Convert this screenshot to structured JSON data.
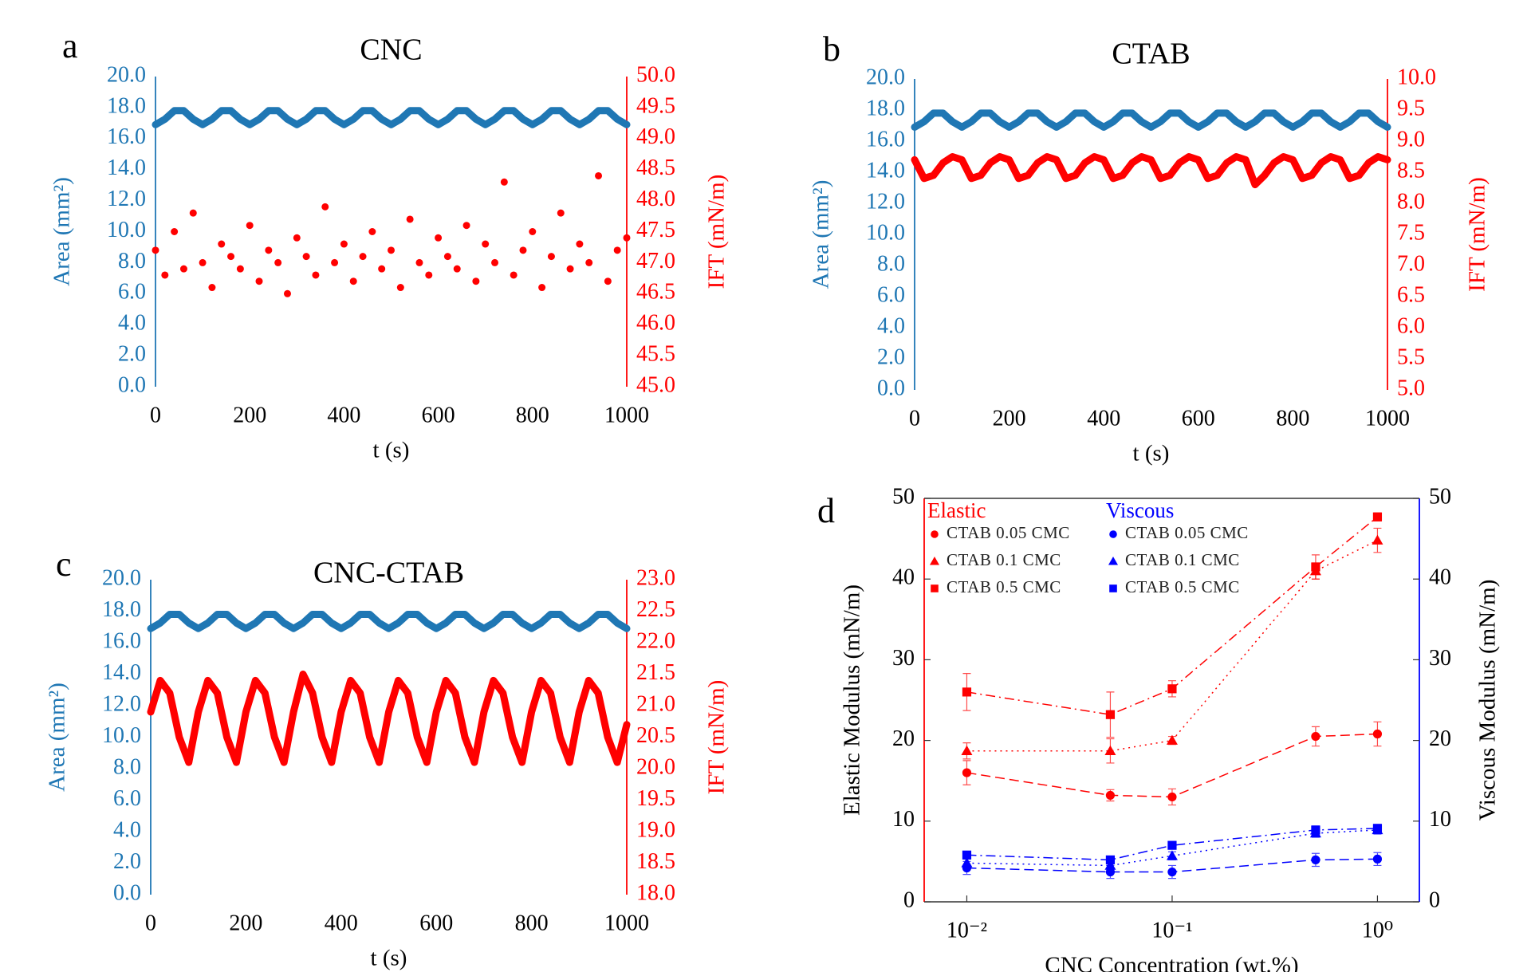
{
  "chart_data": [
    {
      "type": "scatter",
      "panel": "a",
      "title": "CNC",
      "xlabel": "t (s)",
      "ylabel": "Area (mm²)",
      "y2label": "IFT (mN/m)",
      "colored_axes": true,
      "x": [
        0,
        20,
        40,
        60,
        80,
        100,
        120,
        140,
        160,
        180,
        200,
        220,
        240,
        260,
        280,
        300,
        320,
        340,
        360,
        380,
        400,
        420,
        440,
        460,
        480,
        500,
        520,
        540,
        560,
        580,
        600,
        620,
        640,
        660,
        680,
        700,
        720,
        740,
        760,
        780,
        800,
        820,
        840,
        860,
        880,
        900,
        920,
        940,
        960,
        980,
        1000
      ],
      "xlim": [
        0,
        1000
      ],
      "xticks": [
        0,
        200,
        400,
        600,
        800,
        1000
      ],
      "ylim": [
        0,
        20
      ],
      "yticks": [
        {
          "value": 0,
          "label": "0.0"
        },
        {
          "value": 2,
          "label": "2.0"
        },
        {
          "value": 4,
          "label": "4.0"
        },
        {
          "value": 6,
          "label": "6.0"
        },
        {
          "value": 8,
          "label": "8.0"
        },
        {
          "value": 10,
          "label": "10.0"
        },
        {
          "value": 12,
          "label": "12.0"
        },
        {
          "value": 14,
          "label": "14.0"
        },
        {
          "value": 16,
          "label": "16.0"
        },
        {
          "value": 18,
          "label": "18.0"
        },
        {
          "value": 20,
          "label": "20.0"
        }
      ],
      "y2lim": [
        45,
        50
      ],
      "y2ticks": [
        {
          "value": 45,
          "label": "45.0"
        },
        {
          "value": 45.5,
          "label": "45.5"
        },
        {
          "value": 46,
          "label": "46.0"
        },
        {
          "value": 46.5,
          "label": "46.5"
        },
        {
          "value": 47,
          "label": "47.0"
        },
        {
          "value": 47.5,
          "label": "47.5"
        },
        {
          "value": 48,
          "label": "48.0"
        },
        {
          "value": 48.5,
          "label": "48.5"
        },
        {
          "value": 49,
          "label": "49.0"
        },
        {
          "value": 49.5,
          "label": "49.5"
        },
        {
          "value": 50,
          "label": "50.0"
        }
      ],
      "series": [
        {
          "color": "#1f77b4",
          "line": true,
          "values": [
            16.9,
            17.25,
            17.8,
            17.8,
            17.25,
            16.9,
            17.25,
            17.8,
            17.8,
            17.25,
            16.9,
            17.25,
            17.8,
            17.8,
            17.25,
            16.9,
            17.25,
            17.8,
            17.8,
            17.25,
            16.9,
            17.25,
            17.8,
            17.8,
            17.25,
            16.9,
            17.25,
            17.8,
            17.8,
            17.25,
            16.9,
            17.25,
            17.8,
            17.8,
            17.25,
            16.9,
            17.25,
            17.8,
            17.8,
            17.25,
            16.9,
            17.25,
            17.8,
            17.8,
            17.25,
            16.9,
            17.25,
            17.8,
            17.8,
            17.25,
            16.9
          ]
        },
        {
          "color": "#ff0000",
          "line": false,
          "axis": "y2",
          "values": [
            47.2,
            46.8,
            47.5,
            46.9,
            47.8,
            47.0,
            46.6,
            47.3,
            47.1,
            46.9,
            47.6,
            46.7,
            47.2,
            47.0,
            46.5,
            47.4,
            47.1,
            46.8,
            47.9,
            47.0,
            47.3,
            46.7,
            47.1,
            47.5,
            46.9,
            47.2,
            46.6,
            47.7,
            47.0,
            46.8,
            47.4,
            47.1,
            46.9,
            47.6,
            46.7,
            47.3,
            47.0,
            48.3,
            46.8,
            47.2,
            47.5,
            46.6,
            47.1,
            47.8,
            46.9,
            47.3,
            47.0,
            48.4,
            46.7,
            47.2,
            47.4
          ]
        }
      ]
    },
    {
      "type": "scatter",
      "panel": "b",
      "title": "CTAB",
      "xlabel": "t (s)",
      "ylabel": "Area (mm²)",
      "y2label": "IFT (mN/m)",
      "colored_axes": true,
      "x": [
        0,
        20,
        40,
        60,
        80,
        100,
        120,
        140,
        160,
        180,
        200,
        220,
        240,
        260,
        280,
        300,
        320,
        340,
        360,
        380,
        400,
        420,
        440,
        460,
        480,
        500,
        520,
        540,
        560,
        580,
        600,
        620,
        640,
        660,
        680,
        700,
        720,
        740,
        760,
        780,
        800,
        820,
        840,
        860,
        880,
        900,
        920,
        940,
        960,
        980,
        1000
      ],
      "xlim": [
        0,
        1000
      ],
      "xticks": [
        0,
        200,
        400,
        600,
        800,
        1000
      ],
      "ylim": [
        0,
        20
      ],
      "yticks": [
        {
          "value": 0,
          "label": "0.0"
        },
        {
          "value": 2,
          "label": "2.0"
        },
        {
          "value": 4,
          "label": "4.0"
        },
        {
          "value": 6,
          "label": "6.0"
        },
        {
          "value": 8,
          "label": "8.0"
        },
        {
          "value": 10,
          "label": "10.0"
        },
        {
          "value": 12,
          "label": "12.0"
        },
        {
          "value": 14,
          "label": "14.0"
        },
        {
          "value": 16,
          "label": "16.0"
        },
        {
          "value": 18,
          "label": "18.0"
        },
        {
          "value": 20,
          "label": "20.0"
        }
      ],
      "y2lim": [
        5,
        10
      ],
      "y2ticks": [
        {
          "value": 5,
          "label": "5.0"
        },
        {
          "value": 5.5,
          "label": "5.5"
        },
        {
          "value": 6,
          "label": "6.0"
        },
        {
          "value": 6.5,
          "label": "6.5"
        },
        {
          "value": 7,
          "label": "7.0"
        },
        {
          "value": 7.5,
          "label": "7.5"
        },
        {
          "value": 8,
          "label": "8.0"
        },
        {
          "value": 8.5,
          "label": "8.5"
        },
        {
          "value": 9,
          "label": "9.0"
        },
        {
          "value": 9.5,
          "label": "9.5"
        },
        {
          "value": 10,
          "label": "10.0"
        }
      ],
      "series": [
        {
          "color": "#1f77b4",
          "line": true,
          "values": [
            16.9,
            17.25,
            17.8,
            17.8,
            17.25,
            16.9,
            17.25,
            17.8,
            17.8,
            17.25,
            16.9,
            17.25,
            17.8,
            17.8,
            17.25,
            16.9,
            17.25,
            17.8,
            17.8,
            17.25,
            16.9,
            17.25,
            17.8,
            17.8,
            17.25,
            16.9,
            17.25,
            17.8,
            17.8,
            17.25,
            16.9,
            17.25,
            17.8,
            17.8,
            17.25,
            16.9,
            17.25,
            17.8,
            17.8,
            17.25,
            16.9,
            17.25,
            17.8,
            17.8,
            17.25,
            16.9,
            17.25,
            17.8,
            17.8,
            17.25,
            16.9
          ]
        },
        {
          "color": "#ff0000",
          "line": true,
          "axis": "y2",
          "values": [
            8.7,
            8.4,
            8.45,
            8.65,
            8.75,
            8.7,
            8.4,
            8.45,
            8.65,
            8.75,
            8.7,
            8.4,
            8.45,
            8.65,
            8.75,
            8.7,
            8.4,
            8.45,
            8.65,
            8.75,
            8.7,
            8.4,
            8.45,
            8.65,
            8.75,
            8.7,
            8.4,
            8.45,
            8.65,
            8.75,
            8.7,
            8.4,
            8.45,
            8.65,
            8.75,
            8.7,
            8.3,
            8.45,
            8.65,
            8.75,
            8.7,
            8.4,
            8.45,
            8.65,
            8.75,
            8.7,
            8.4,
            8.45,
            8.65,
            8.75,
            8.7
          ]
        }
      ]
    },
    {
      "type": "scatter",
      "panel": "c",
      "title": "CNC-CTAB",
      "xlabel": "t (s)",
      "ylabel": "Area (mm²)",
      "y2label": "IFT (mN/m)",
      "colored_axes": true,
      "x": [
        0,
        20,
        40,
        60,
        80,
        100,
        120,
        140,
        160,
        180,
        200,
        220,
        240,
        260,
        280,
        300,
        320,
        340,
        360,
        380,
        400,
        420,
        440,
        460,
        480,
        500,
        520,
        540,
        560,
        580,
        600,
        620,
        640,
        660,
        680,
        700,
        720,
        740,
        760,
        780,
        800,
        820,
        840,
        860,
        880,
        900,
        920,
        940,
        960,
        980,
        1000
      ],
      "xlim": [
        0,
        1000
      ],
      "xticks": [
        0,
        200,
        400,
        600,
        800,
        1000
      ],
      "ylim": [
        0,
        20
      ],
      "yticks": [
        {
          "value": 0,
          "label": "0.0"
        },
        {
          "value": 2,
          "label": "2.0"
        },
        {
          "value": 4,
          "label": "4.0"
        },
        {
          "value": 6,
          "label": "6.0"
        },
        {
          "value": 8,
          "label": "8.0"
        },
        {
          "value": 10,
          "label": "10.0"
        },
        {
          "value": 12,
          "label": "12.0"
        },
        {
          "value": 14,
          "label": "14.0"
        },
        {
          "value": 16,
          "label": "16.0"
        },
        {
          "value": 18,
          "label": "18.0"
        },
        {
          "value": 20,
          "label": "20.0"
        }
      ],
      "y2lim": [
        18,
        23
      ],
      "y2ticks": [
        {
          "value": 18,
          "label": "18.0"
        },
        {
          "value": 18.5,
          "label": "18.5"
        },
        {
          "value": 19,
          "label": "19.0"
        },
        {
          "value": 19.5,
          "label": "19.5"
        },
        {
          "value": 20,
          "label": "20.0"
        },
        {
          "value": 20.5,
          "label": "20.5"
        },
        {
          "value": 21,
          "label": "21.0"
        },
        {
          "value": 21.5,
          "label": "21.5"
        },
        {
          "value": 22,
          "label": "22.0"
        },
        {
          "value": 22.5,
          "label": "22.5"
        },
        {
          "value": 23,
          "label": "23.0"
        }
      ],
      "series": [
        {
          "color": "#1f77b4",
          "line": true,
          "values": [
            16.9,
            17.25,
            17.8,
            17.8,
            17.25,
            16.9,
            17.25,
            17.8,
            17.8,
            17.25,
            16.9,
            17.25,
            17.8,
            17.8,
            17.25,
            16.9,
            17.25,
            17.8,
            17.8,
            17.25,
            16.9,
            17.25,
            17.8,
            17.8,
            17.25,
            16.9,
            17.25,
            17.8,
            17.8,
            17.25,
            16.9,
            17.25,
            17.8,
            17.8,
            17.25,
            16.9,
            17.25,
            17.8,
            17.8,
            17.25,
            16.9,
            17.25,
            17.8,
            17.8,
            17.25,
            16.9,
            17.25,
            17.8,
            17.8,
            17.25,
            16.9
          ]
        },
        {
          "color": "#ff0000",
          "line": true,
          "axis": "y2",
          "values": [
            20.9,
            21.4,
            21.2,
            20.5,
            20.1,
            20.9,
            21.4,
            21.2,
            20.5,
            20.1,
            20.9,
            21.4,
            21.2,
            20.5,
            20.1,
            20.9,
            21.5,
            21.2,
            20.5,
            20.1,
            20.9,
            21.4,
            21.2,
            20.5,
            20.1,
            20.9,
            21.4,
            21.2,
            20.5,
            20.1,
            20.9,
            21.4,
            21.2,
            20.5,
            20.1,
            20.9,
            21.4,
            21.2,
            20.5,
            20.1,
            20.9,
            21.4,
            21.2,
            20.5,
            20.1,
            20.9,
            21.4,
            21.2,
            20.5,
            20.1,
            20.7
          ]
        }
      ]
    },
    {
      "type": "line",
      "panel": "d",
      "xlabel": "CNC Concentration (wt.%)",
      "ylabel": "Elastic Modulus (mN/m)",
      "y2label": "Viscous Modulus (mN/m)",
      "colored_axes": false,
      "x": [
        0.01,
        0.05,
        0.1,
        0.5,
        1
      ],
      "xlog": true,
      "xlim": [
        0.0062,
        1.6
      ],
      "xticks": [
        {
          "value": 0.01,
          "label": "10⁻²"
        },
        {
          "value": 0.1,
          "label": "10⁻¹"
        },
        {
          "value": 1,
          "label": "10⁰"
        }
      ],
      "ylim": [
        0,
        50
      ],
      "yticks": [
        0,
        10,
        20,
        30,
        40,
        50
      ],
      "y2lim": [
        0,
        50
      ],
      "y2ticks": [
        0,
        10,
        20,
        30,
        40,
        50
      ],
      "legend_groups": [
        {
          "title": "Elastic",
          "color": "#ff0000"
        },
        {
          "title": "Viscous",
          "color": "#0000ff"
        }
      ],
      "series": [
        {
          "name": "CTAB 0.05 CMC",
          "group": 0,
          "color": "#ff0000",
          "marker": "circle",
          "dash": "dashed",
          "values": [
            16,
            13.2,
            13,
            20.5,
            20.8
          ],
          "errors": [
            1.5,
            0.7,
            1,
            1.2,
            1.5
          ]
        },
        {
          "name": "CTAB 0.1 CMC",
          "group": 0,
          "color": "#ff0000",
          "marker": "triangle",
          "dash": "dotted",
          "values": [
            18.7,
            18.7,
            20,
            41,
            44.8
          ],
          "errors": [
            1,
            1.5,
            0.5,
            1,
            1.5
          ]
        },
        {
          "name": "CTAB 0.5 CMC",
          "group": 0,
          "color": "#ff0000",
          "marker": "square",
          "dash": "dashdot",
          "values": [
            26,
            23.2,
            26.4,
            41.5,
            47.7
          ],
          "errors": [
            2.3,
            2.8,
            1,
            1.5,
            0.5
          ]
        },
        {
          "name": "CTAB 0.05 CMC",
          "group": 1,
          "axis": "y2",
          "color": "#0000ff",
          "marker": "circle",
          "dash": "dashed",
          "values": [
            4.2,
            3.7,
            3.7,
            5.2,
            5.3
          ],
          "errors": [
            0.8,
            0.8,
            0.8,
            0.8,
            0.8
          ]
        },
        {
          "name": "CTAB 0.1 CMC",
          "group": 1,
          "axis": "y2",
          "color": "#0000ff",
          "marker": "triangle",
          "dash": "dotted",
          "values": [
            4.8,
            4.5,
            5.7,
            8.5,
            8.9
          ],
          "errors": [
            0.5,
            0.5,
            0.5,
            0.5,
            0.5
          ]
        },
        {
          "name": "CTAB 0.5 CMC",
          "group": 1,
          "axis": "y2",
          "color": "#0000ff",
          "marker": "square",
          "dash": "dashdot",
          "values": [
            5.8,
            5.2,
            7,
            8.9,
            9.1
          ],
          "errors": [
            0.4,
            0.4,
            0.4,
            0.5,
            0.5
          ]
        }
      ]
    }
  ]
}
